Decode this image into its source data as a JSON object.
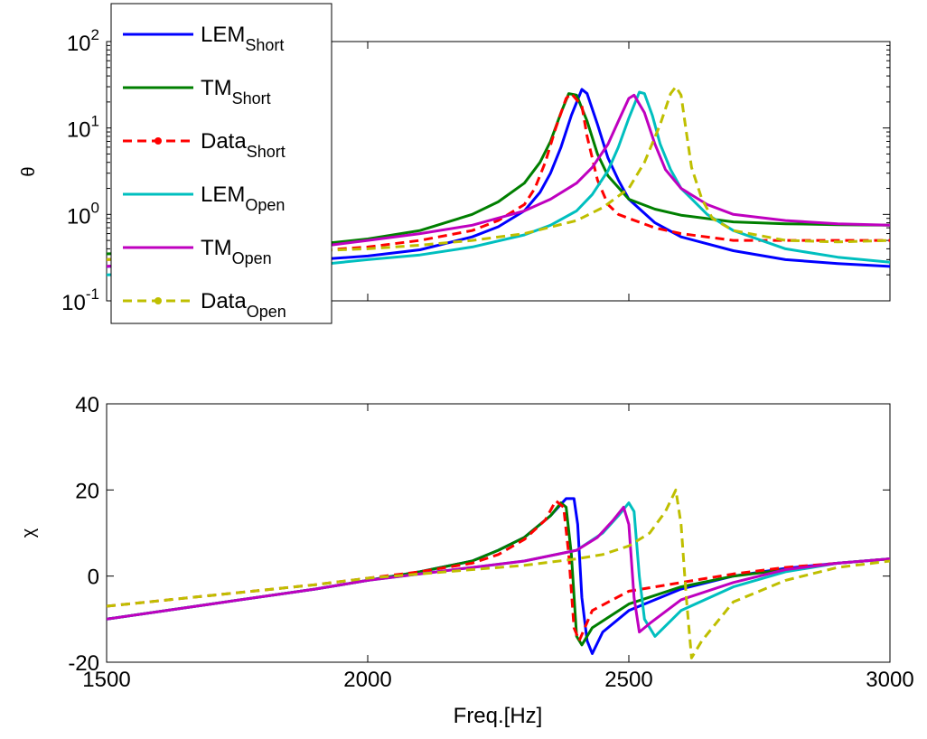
{
  "chart_data": [
    {
      "type": "line",
      "ylabel": "θ",
      "xlabel": "",
      "xlim": [
        1500,
        3000
      ],
      "ylim": [
        0.1,
        100
      ],
      "yscale": "log",
      "xticks": [],
      "yticks": [
        {
          "value": 0.1,
          "base": "10",
          "exp": "-1"
        },
        {
          "value": 1,
          "base": "10",
          "exp": "0"
        },
        {
          "value": 10,
          "base": "10",
          "exp": "1"
        },
        {
          "value": 100,
          "base": "10",
          "exp": "2"
        }
      ],
      "grid": false,
      "legend_position": "top-left",
      "series": [
        {
          "name": "LEM",
          "sub": "Short",
          "color": "#0000ff",
          "style": "solid",
          "x": [
            1500,
            1600,
            1700,
            1800,
            1900,
            2000,
            2100,
            2200,
            2250,
            2300,
            2330,
            2350,
            2370,
            2390,
            2410,
            2420,
            2440,
            2460,
            2480,
            2500,
            2550,
            2600,
            2700,
            2800,
            2900,
            3000
          ],
          "values": [
            0.25,
            0.26,
            0.27,
            0.28,
            0.3,
            0.33,
            0.39,
            0.55,
            0.72,
            1.1,
            1.8,
            3.0,
            6.0,
            14.0,
            28.0,
            25.0,
            11.0,
            4.5,
            2.5,
            1.5,
            0.8,
            0.55,
            0.38,
            0.3,
            0.27,
            0.25
          ]
        },
        {
          "name": "TM",
          "sub": "Short",
          "color": "#007f00",
          "style": "solid",
          "x": [
            1500,
            1600,
            1700,
            1800,
            1900,
            2000,
            2100,
            2200,
            2250,
            2300,
            2330,
            2350,
            2370,
            2385,
            2400,
            2420,
            2440,
            2460,
            2500,
            2550,
            2600,
            2700,
            2800,
            2900,
            3000
          ],
          "values": [
            0.35,
            0.37,
            0.38,
            0.4,
            0.45,
            0.52,
            0.65,
            1.0,
            1.4,
            2.3,
            4.0,
            7.0,
            15.0,
            25.0,
            24.0,
            12.0,
            5.0,
            2.8,
            1.5,
            1.15,
            0.98,
            0.82,
            0.78,
            0.76,
            0.75
          ]
        },
        {
          "name": "Data",
          "sub": "Short",
          "color": "#ff0000",
          "style": "dashed",
          "x": [
            1500,
            1600,
            1700,
            1800,
            1900,
            2000,
            2100,
            2200,
            2250,
            2300,
            2320,
            2340,
            2360,
            2380,
            2390,
            2410,
            2420,
            2440,
            2460,
            2480,
            2500,
            2550,
            2600,
            2700,
            2800,
            2900,
            3000
          ],
          "values": [
            0.3,
            0.32,
            0.34,
            0.36,
            0.38,
            0.42,
            0.5,
            0.65,
            0.85,
            1.3,
            2.0,
            4.0,
            10.0,
            22.0,
            25.0,
            18.0,
            8.0,
            2.5,
            1.3,
            1.0,
            0.9,
            0.7,
            0.6,
            0.5,
            0.5,
            0.5,
            0.5
          ]
        },
        {
          "name": "LEM",
          "sub": "Open",
          "color": "#00bfbf",
          "style": "solid",
          "x": [
            1500,
            1600,
            1700,
            1800,
            1900,
            2000,
            2100,
            2200,
            2300,
            2350,
            2400,
            2430,
            2460,
            2480,
            2500,
            2520,
            2530,
            2545,
            2560,
            2580,
            2600,
            2650,
            2700,
            2800,
            2900,
            3000
          ],
          "values": [
            0.2,
            0.21,
            0.23,
            0.24,
            0.26,
            0.3,
            0.34,
            0.42,
            0.58,
            0.75,
            1.1,
            1.7,
            3.2,
            6.0,
            13.0,
            26.0,
            25.0,
            14.0,
            6.5,
            3.3,
            2.0,
            1.0,
            0.65,
            0.4,
            0.32,
            0.28
          ]
        },
        {
          "name": "TM",
          "sub": "Open",
          "color": "#bf00bf",
          "style": "solid",
          "x": [
            1500,
            1600,
            1700,
            1800,
            1900,
            2000,
            2100,
            2200,
            2300,
            2350,
            2400,
            2430,
            2460,
            2480,
            2500,
            2510,
            2530,
            2550,
            2570,
            2600,
            2650,
            2700,
            2800,
            2900,
            3000
          ],
          "values": [
            0.25,
            0.28,
            0.32,
            0.36,
            0.42,
            0.5,
            0.6,
            0.75,
            1.1,
            1.5,
            2.3,
            3.5,
            6.5,
            12.0,
            22.0,
            24.0,
            15.0,
            6.5,
            3.3,
            2.0,
            1.3,
            1.0,
            0.85,
            0.78,
            0.75
          ]
        },
        {
          "name": "Data",
          "sub": "Open",
          "color": "#bfbf00",
          "style": "dashed",
          "x": [
            1500,
            1600,
            1700,
            1800,
            1900,
            2000,
            2100,
            2200,
            2300,
            2400,
            2450,
            2500,
            2530,
            2560,
            2580,
            2590,
            2600,
            2610,
            2620,
            2640,
            2660,
            2700,
            2800,
            2900,
            3000
          ],
          "values": [
            0.3,
            0.32,
            0.34,
            0.36,
            0.38,
            0.4,
            0.44,
            0.5,
            0.6,
            0.85,
            1.2,
            2.0,
            4.0,
            11.0,
            25.0,
            30.0,
            24.0,
            9.0,
            3.5,
            1.5,
            0.9,
            0.65,
            0.5,
            0.48,
            0.5
          ]
        }
      ]
    },
    {
      "type": "line",
      "ylabel": "χ",
      "xlabel": "Freq.[Hz]",
      "xlim": [
        1500,
        3000
      ],
      "ylim": [
        -20,
        40
      ],
      "xticks": [
        1500,
        2000,
        2500,
        3000
      ],
      "yticks": [
        -20,
        0,
        20,
        40
      ],
      "grid": false,
      "legend_position": "none",
      "series": [
        {
          "name": "LEM",
          "sub": "Short",
          "color": "#0000ff",
          "style": "solid",
          "x": [
            1500,
            1700,
            1900,
            2000,
            2100,
            2200,
            2250,
            2300,
            2350,
            2380,
            2395,
            2402,
            2410,
            2420,
            2430,
            2450,
            2500,
            2600,
            2700,
            2800,
            2900,
            3000
          ],
          "values": [
            -10,
            -6.5,
            -3,
            -1,
            1,
            3.5,
            6,
            9,
            14,
            18,
            18,
            12,
            -5,
            -15,
            -18,
            -13,
            -8,
            -3,
            0,
            1.8,
            3,
            4
          ]
        },
        {
          "name": "TM",
          "sub": "Short",
          "color": "#007f00",
          "style": "solid",
          "x": [
            1500,
            1700,
            1900,
            2000,
            2100,
            2200,
            2250,
            2300,
            2350,
            2370,
            2380,
            2390,
            2400,
            2410,
            2430,
            2500,
            2600,
            2700,
            2800,
            2900,
            3000
          ],
          "values": [
            -10,
            -6.5,
            -3,
            -1,
            1,
            3.5,
            6,
            9,
            14,
            17,
            16,
            5,
            -14,
            -16,
            -12,
            -6.5,
            -2.5,
            0,
            1.5,
            3,
            4
          ]
        },
        {
          "name": "Data",
          "sub": "Short",
          "color": "#ff0000",
          "style": "dashed",
          "x": [
            1500,
            1700,
            1900,
            2000,
            2100,
            2200,
            2250,
            2300,
            2340,
            2360,
            2375,
            2385,
            2395,
            2405,
            2430,
            2500,
            2600,
            2700,
            2800,
            2900,
            3000
          ],
          "values": [
            -7,
            -4.5,
            -2,
            -0.5,
            1,
            3,
            5,
            8.5,
            13,
            17.5,
            16,
            5,
            -12,
            -15,
            -8,
            -3.5,
            -1.5,
            0.5,
            2,
            3,
            4
          ]
        },
        {
          "name": "LEM",
          "sub": "Open",
          "color": "#00bfbf",
          "style": "solid",
          "x": [
            1500,
            1700,
            1900,
            2000,
            2100,
            2200,
            2300,
            2400,
            2450,
            2480,
            2500,
            2510,
            2520,
            2530,
            2550,
            2600,
            2700,
            2800,
            2900,
            3000
          ],
          "values": [
            -10,
            -6.5,
            -3,
            -1,
            0.5,
            2,
            3.5,
            6,
            10,
            14,
            17,
            15,
            0,
            -10,
            -14,
            -8,
            -2.5,
            1,
            3,
            4
          ]
        },
        {
          "name": "TM",
          "sub": "Open",
          "color": "#bf00bf",
          "style": "solid",
          "x": [
            1500,
            1700,
            1900,
            2000,
            2100,
            2200,
            2300,
            2400,
            2440,
            2470,
            2490,
            2500,
            2510,
            2520,
            2540,
            2600,
            2700,
            2800,
            2900,
            3000
          ],
          "values": [
            -10,
            -6.5,
            -3,
            -1,
            0.5,
            2,
            3.5,
            6,
            9,
            13,
            16,
            12,
            -5,
            -13,
            -11,
            -5.5,
            -1.5,
            1.5,
            3,
            4
          ]
        },
        {
          "name": "Data",
          "sub": "Open",
          "color": "#bfbf00",
          "style": "dashed",
          "x": [
            1500,
            1700,
            1900,
            2000,
            2100,
            2200,
            2300,
            2400,
            2450,
            2500,
            2540,
            2570,
            2590,
            2600,
            2610,
            2620,
            2640,
            2700,
            2800,
            2900,
            3000
          ],
          "values": [
            -7,
            -4.5,
            -2,
            -0.5,
            0.5,
            1.5,
            2.5,
            4,
            5,
            7,
            10,
            15,
            20,
            12,
            -5,
            -19,
            -15,
            -6,
            -1,
            2,
            3.5
          ]
        }
      ]
    }
  ]
}
